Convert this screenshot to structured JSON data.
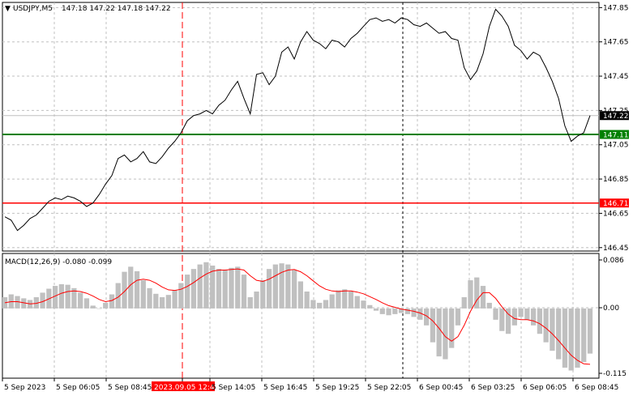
{
  "window": {
    "symbol_header": "USDJPY,M5",
    "ohlc": "147.18 147.22 147.18 147.22"
  },
  "colors": {
    "price_line": "#000000",
    "grid": "#c0c0c0",
    "support_line": "#008000",
    "resistance_line": "#ff0000",
    "macd_hist": "#c0c0c0",
    "macd_signal": "#ff0000",
    "current_price_bg": "#000000"
  },
  "levels": {
    "current": "147.22",
    "green": "147.11",
    "red": "146.71"
  },
  "macd": {
    "header": "MACD(12,26,9) -0.080 -0.099",
    "scale_top": "0.086",
    "scale_zero": "0.00",
    "scale_bottom": "-0.115"
  },
  "time_axis": {
    "labels": [
      "5 Sep 2023",
      "5 Sep 06:05",
      "5 Sep 08:45",
      "2023.09.05 12:40",
      "5 Sep 14:05",
      "5 Sep 16:45",
      "5 Sep 19:25",
      "5 Sep 22:05",
      "6 Sep 00:45",
      "6 Sep 03:25",
      "6 Sep 06:05",
      "6 Sep 08:45"
    ],
    "highlight_index": 3
  },
  "chart_data": {
    "type": "line",
    "symbol": "USDJPY",
    "timeframe": "M5",
    "price_ticks": [
      "147.85",
      "147.65",
      "147.45",
      "147.25",
      "147.05",
      "146.85",
      "146.65",
      "146.45"
    ],
    "price_range": [
      146.43,
      147.88
    ],
    "price_series": [
      146.63,
      146.61,
      146.55,
      146.58,
      146.62,
      146.64,
      146.68,
      146.72,
      146.74,
      146.73,
      146.75,
      146.74,
      146.72,
      146.69,
      146.71,
      146.76,
      146.82,
      146.87,
      146.97,
      146.99,
      146.95,
      146.97,
      147.01,
      146.95,
      146.94,
      146.98,
      147.03,
      147.07,
      147.12,
      147.19,
      147.22,
      147.23,
      147.25,
      147.23,
      147.28,
      147.31,
      147.37,
      147.42,
      147.32,
      147.23,
      147.46,
      147.47,
      147.4,
      147.45,
      147.59,
      147.62,
      147.55,
      147.65,
      147.71,
      147.66,
      147.64,
      147.61,
      147.66,
      147.65,
      147.62,
      147.67,
      147.7,
      147.74,
      147.78,
      147.79,
      147.77,
      147.78,
      147.76,
      147.79,
      147.78,
      147.75,
      147.74,
      147.76,
      147.73,
      147.7,
      147.71,
      147.67,
      147.66,
      147.5,
      147.43,
      147.48,
      147.58,
      147.74,
      147.84,
      147.8,
      147.74,
      147.63,
      147.6,
      147.55,
      147.59,
      147.57,
      147.5,
      147.42,
      147.32,
      147.16,
      147.07,
      147.1,
      147.12,
      147.22
    ],
    "macd_range": [
      -0.115,
      0.086
    ],
    "macd_hist": [
      0.02,
      0.025,
      0.022,
      0.018,
      0.015,
      0.02,
      0.028,
      0.035,
      0.04,
      0.043,
      0.042,
      0.036,
      0.028,
      0.018,
      0.005,
      0.0,
      0.01,
      0.025,
      0.045,
      0.065,
      0.074,
      0.066,
      0.05,
      0.036,
      0.026,
      0.02,
      0.024,
      0.032,
      0.045,
      0.06,
      0.07,
      0.078,
      0.082,
      0.076,
      0.07,
      0.068,
      0.072,
      0.074,
      0.06,
      0.02,
      0.03,
      0.05,
      0.07,
      0.078,
      0.08,
      0.078,
      0.068,
      0.048,
      0.03,
      0.015,
      0.01,
      0.015,
      0.025,
      0.032,
      0.034,
      0.03,
      0.022,
      0.014,
      0.006,
      -0.004,
      -0.01,
      -0.012,
      -0.01,
      -0.008,
      -0.01,
      -0.015,
      -0.02,
      -0.03,
      -0.06,
      -0.085,
      -0.09,
      -0.07,
      -0.03,
      0.02,
      0.05,
      0.055,
      0.04,
      0.01,
      -0.02,
      -0.04,
      -0.045,
      -0.03,
      -0.015,
      -0.02,
      -0.03,
      -0.045,
      -0.06,
      -0.075,
      -0.09,
      -0.105,
      -0.11,
      -0.105,
      -0.095,
      -0.08
    ],
    "macd_signal": [
      0.01,
      0.012,
      0.012,
      0.01,
      0.008,
      0.009,
      0.012,
      0.017,
      0.022,
      0.027,
      0.03,
      0.031,
      0.03,
      0.027,
      0.022,
      0.016,
      0.012,
      0.014,
      0.02,
      0.03,
      0.042,
      0.05,
      0.052,
      0.05,
      0.045,
      0.038,
      0.033,
      0.032,
      0.034,
      0.039,
      0.046,
      0.054,
      0.061,
      0.066,
      0.068,
      0.068,
      0.069,
      0.07,
      0.068,
      0.058,
      0.05,
      0.048,
      0.052,
      0.058,
      0.064,
      0.068,
      0.069,
      0.065,
      0.058,
      0.049,
      0.04,
      0.034,
      0.031,
      0.03,
      0.031,
      0.031,
      0.029,
      0.026,
      0.021,
      0.016,
      0.01,
      0.005,
      0.002,
      -0.001,
      -0.003,
      -0.005,
      -0.008,
      -0.013,
      -0.022,
      -0.035,
      -0.05,
      -0.058,
      -0.05,
      -0.03,
      -0.005,
      0.015,
      0.028,
      0.028,
      0.018,
      0.003,
      -0.01,
      -0.018,
      -0.02,
      -0.02,
      -0.022,
      -0.027,
      -0.035,
      -0.045,
      -0.057,
      -0.07,
      -0.083,
      -0.092,
      -0.098,
      -0.099
    ]
  }
}
